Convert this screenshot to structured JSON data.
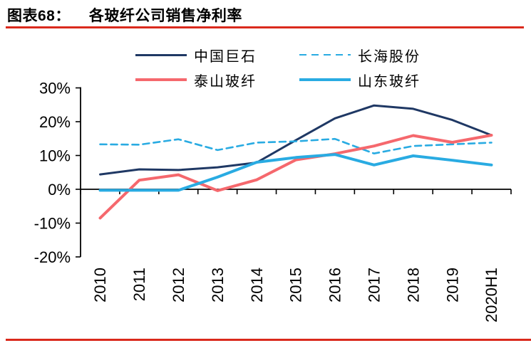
{
  "figure": {
    "label": "图表68：",
    "title": "各玻纤公司销售净利率"
  },
  "rule_color": "#da291c",
  "axis_color": "#000000",
  "chart_data": {
    "type": "line",
    "title": "各玻纤公司销售净利率",
    "categories": [
      "2010",
      "2011",
      "2012",
      "2013",
      "2014",
      "2015",
      "2016",
      "2017",
      "2018",
      "2019",
      "2020H1"
    ],
    "series": [
      {
        "name": "中国巨石",
        "color": "#1f3864",
        "style": "solid",
        "width": 3,
        "values": [
          4.4,
          5.9,
          5.7,
          6.5,
          7.9,
          14.5,
          21.0,
          24.8,
          23.8,
          20.5,
          16.0
        ]
      },
      {
        "name": "长海股份",
        "color": "#29abe2",
        "style": "dashed",
        "width": 2.6,
        "values": [
          13.3,
          13.2,
          14.8,
          11.6,
          13.8,
          14.2,
          14.9,
          10.6,
          12.8,
          13.3,
          13.8
        ]
      },
      {
        "name": "泰山玻纤",
        "color": "#f5686d",
        "style": "solid",
        "width": 4,
        "values": [
          -8.5,
          2.7,
          4.3,
          -0.4,
          2.8,
          8.7,
          10.5,
          12.8,
          15.9,
          13.9,
          16.0
        ]
      },
      {
        "name": "山东玻纤",
        "color": "#29abe2",
        "style": "solid",
        "width": 4,
        "values": [
          -0.3,
          -0.3,
          -0.3,
          3.6,
          8.0,
          9.4,
          10.3,
          7.2,
          9.9,
          8.6,
          7.2
        ]
      }
    ],
    "ylim": [
      -20,
      30
    ],
    "ytick_step": 10,
    "ytick_labels": [
      "30%",
      "20%",
      "10%",
      "0%",
      "-10%",
      "-20%"
    ],
    "xlabel": "",
    "ylabel": "",
    "grid": false,
    "legend_position": "top"
  }
}
